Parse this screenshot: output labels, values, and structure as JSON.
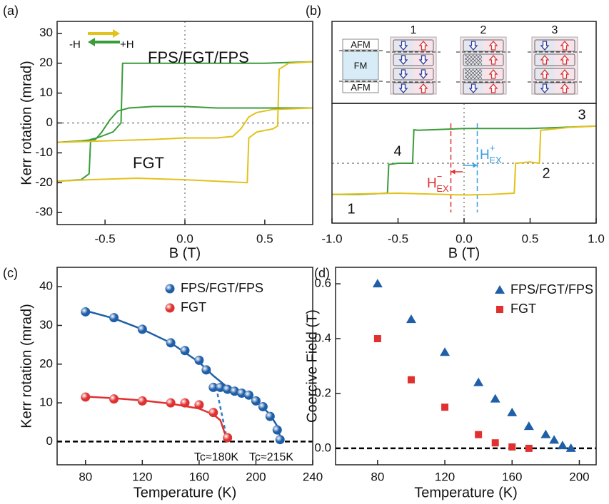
{
  "chart_data": [
    {
      "type": "line",
      "panel_label": "(a)",
      "x_label": "B (T)",
      "y_label": "Kerr rotation (mrad)",
      "xlim": [
        -0.8,
        0.8
      ],
      "ylim": [
        -34,
        34
      ],
      "xticks": [
        -0.5,
        {
          "value": 0,
          "label": "0.0"
        },
        0.5
      ],
      "yticks": [
        -30,
        -20,
        -10,
        0,
        10,
        20,
        30
      ],
      "reference_lines": {
        "x": [
          0
        ],
        "y": [
          0
        ]
      },
      "annotations": [
        "FPS/FGT/FPS",
        "FGT",
        "-H",
        "+H"
      ],
      "series": [
        {
          "color": "#3a9c3a",
          "x": [
            0.8,
            0.5,
            0.2,
            0,
            -0.2,
            -0.39,
            -0.4,
            -0.45,
            -0.55,
            -0.59,
            -0.6,
            -0.65,
            -0.8
          ],
          "values": [
            20.5,
            20,
            20,
            20,
            20,
            20,
            0,
            -3,
            -5,
            -5.5,
            -17,
            -19,
            -19.5
          ]
        },
        {
          "color": "#e2c21c",
          "x": [
            -0.8,
            -0.6,
            -0.3,
            0,
            0.2,
            0.39,
            0.4,
            0.45,
            0.55,
            0.58,
            0.59,
            0.65,
            0.8
          ],
          "values": [
            -19.5,
            -19,
            -18.5,
            -19,
            -19.5,
            -20,
            -5,
            -3,
            -2,
            -1,
            18,
            20,
            20.5
          ]
        },
        {
          "color": "#3a9c3a",
          "x": [
            0.8,
            0.5,
            0.2,
            0,
            -0.2,
            -0.35,
            -0.42,
            -0.47,
            -0.52,
            -0.56,
            -0.65,
            -0.8
          ],
          "values": [
            5,
            5,
            5,
            5.5,
            5.5,
            5,
            4,
            1,
            -3,
            -5.5,
            -6,
            -6.5
          ]
        },
        {
          "color": "#e2c21c",
          "x": [
            -0.8,
            -0.5,
            -0.2,
            0,
            0.2,
            0.3,
            0.35,
            0.4,
            0.45,
            0.55,
            0.8
          ],
          "values": [
            -6.5,
            -6,
            -5.5,
            -5,
            -5,
            -4.5,
            -2,
            2,
            3.5,
            4.5,
            5
          ]
        }
      ]
    },
    {
      "type": "line",
      "panel_label": "(b)",
      "x_label": "B (T)",
      "xlim": [
        -1,
        1
      ],
      "ylim": [
        -1,
        1
      ],
      "xticks": [
        {
          "value": -1,
          "label": "-1.0"
        },
        -0.5,
        {
          "value": 0,
          "label": "0.0"
        },
        0.5,
        {
          "value": 1,
          "label": "1.0"
        }
      ],
      "reference_lines": {
        "x": [
          0
        ],
        "y": [
          0
        ]
      },
      "annotations": [
        "1",
        "2",
        "3",
        "4"
      ],
      "exchange_bias": [
        {
          "x": -0.1,
          "color": "#e03030",
          "label": "H",
          "sup": "−",
          "sub": "EX"
        },
        {
          "x": 0.1,
          "color": "#3aa0e0",
          "label": "H",
          "sup": "+",
          "sub": "EX"
        }
      ],
      "diagram": {
        "layers": [
          "AFM",
          "FM",
          "AFM"
        ],
        "states": [
          "1",
          "2",
          "3"
        ]
      },
      "series": [
        {
          "color": "#3a9c3a",
          "x": [
            1,
            0.5,
            0,
            -0.35,
            -0.38,
            -0.39,
            -0.5,
            -0.57,
            -0.58,
            -0.8,
            -1
          ],
          "values": [
            0.62,
            0.58,
            0.58,
            0.55,
            0.56,
            0,
            0,
            -0.02,
            -0.5,
            -0.52,
            -0.52
          ]
        },
        {
          "color": "#e2c21c",
          "x": [
            -1,
            -0.5,
            0,
            0.2,
            0.38,
            0.39,
            0.5,
            0.57,
            0.58,
            0.8,
            1
          ],
          "values": [
            -0.52,
            -0.5,
            -0.53,
            -0.52,
            -0.5,
            0,
            0.02,
            0,
            0.55,
            0.6,
            0.62
          ]
        }
      ]
    },
    {
      "type": "scatter",
      "panel_label": "(c)",
      "x_label": "Temperature (K)",
      "y_label": "Kerr rotation (mrad)",
      "xlim": [
        60,
        240
      ],
      "ylim": [
        -6,
        45
      ],
      "xticks": [
        80,
        120,
        160,
        200,
        240
      ],
      "yticks": [
        0,
        10,
        20,
        30,
        40
      ],
      "zero_line": true,
      "legend": "upper right",
      "annotations": [
        {
          "text": "Tc≈180K",
          "color": "#e03030"
        },
        {
          "text": "Tc≈215K",
          "color": "#2b7fc4"
        }
      ],
      "series": [
        {
          "name": "FPS/FGT/FPS",
          "color": "#1f5fa8",
          "marker": "circle",
          "x": [
            80,
            100,
            120,
            140,
            150,
            160,
            165,
            170,
            175,
            180,
            185,
            190,
            195,
            200,
            205,
            210,
            215,
            217
          ],
          "values": [
            33.5,
            32,
            29,
            25.5,
            23.5,
            21,
            18.5,
            14,
            14,
            13.5,
            13,
            12.5,
            12,
            10.5,
            9,
            6.5,
            3,
            0.5
          ],
          "fit": {
            "x": [
              80,
              100,
              120,
              140,
              160,
              170,
              180,
              190,
              200,
              210,
              215,
              218
            ],
            "values": [
              33.8,
              31.8,
              29,
              25.5,
              20.5,
              17,
              14,
              12.5,
              10.5,
              7,
              4,
              0
            ]
          },
          "extrapolation": {
            "x": [
              172,
              180
            ],
            "values": [
              14,
              0
            ]
          }
        },
        {
          "name": "FGT",
          "color": "#e03030",
          "marker": "circle",
          "x": [
            80,
            100,
            120,
            140,
            150,
            160,
            170,
            180
          ],
          "values": [
            11.5,
            11,
            10.5,
            10,
            10,
            9.5,
            7.5,
            1
          ],
          "fit": {
            "x": [
              80,
              100,
              120,
              140,
              160,
              170,
              175,
              180
            ],
            "values": [
              11.6,
              11.2,
              10.6,
              9.8,
              8.5,
              7,
              5.5,
              0
            ]
          }
        }
      ]
    },
    {
      "type": "scatter",
      "panel_label": "(d)",
      "x_label": "Temperature (K)",
      "y_label": "Coercive Field (T)",
      "xlim": [
        55,
        210
      ],
      "ylim": [
        -0.06,
        0.66
      ],
      "xticks": [
        80,
        120,
        160,
        200
      ],
      "yticks": [
        {
          "value": 0,
          "label": "0.0"
        },
        0.2,
        0.4,
        0.6
      ],
      "zero_line": true,
      "legend": "upper right",
      "series": [
        {
          "name": "FPS/FGT/FPS",
          "color": "#1f5fa8",
          "marker": "triangle",
          "x": [
            80,
            100,
            120,
            140,
            150,
            160,
            170,
            180,
            185,
            190,
            195
          ],
          "values": [
            0.6,
            0.47,
            0.35,
            0.24,
            0.18,
            0.13,
            0.08,
            0.05,
            0.03,
            0.01,
            0
          ]
        },
        {
          "name": "FGT",
          "color": "#e03030",
          "marker": "square",
          "x": [
            80,
            100,
            120,
            140,
            150,
            160,
            170
          ],
          "values": [
            0.4,
            0.25,
            0.15,
            0.05,
            0.02,
            0.005,
            0
          ]
        }
      ]
    }
  ]
}
